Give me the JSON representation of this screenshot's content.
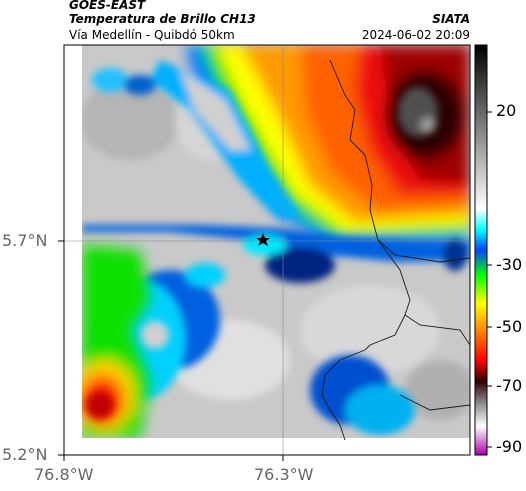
{
  "header": {
    "satellite": "GOES-EAST",
    "product": "Temperatura de Brillo CH13",
    "organization": "SIATA",
    "route": "Vía Medellín - Quibdó 50km",
    "timestamp": "2024-06-02 20:09"
  },
  "axes": {
    "y_ticks": [
      "5.7°N",
      "5.2°N"
    ],
    "x_ticks": [
      "76.8°W",
      "76.3°W"
    ]
  },
  "colorbar": {
    "ticks": [
      "20",
      "-30",
      "-50",
      "-70",
      "-90"
    ]
  },
  "marker": {
    "name": "star-marker"
  }
}
